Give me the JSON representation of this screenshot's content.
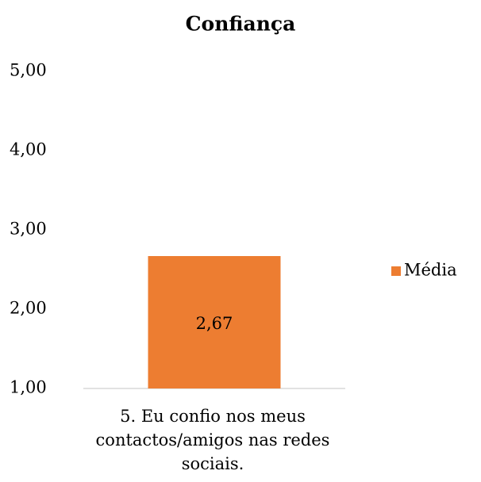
{
  "chart_data": {
    "type": "bar",
    "title": "Confiança",
    "categories": [
      "5. Eu confio nos meus contactos/amigos nas redes sociais."
    ],
    "series": [
      {
        "name": "Média",
        "color": "#ed7d31",
        "values": [
          2.67
        ],
        "value_labels": [
          "2,67"
        ]
      }
    ],
    "ylim": [
      1,
      5
    ],
    "yticks": [
      {
        "value": 1,
        "label": "1,00"
      },
      {
        "value": 2,
        "label": "2,00"
      },
      {
        "value": 3,
        "label": "3,00"
      },
      {
        "value": 4,
        "label": "4,00"
      },
      {
        "value": 5,
        "label": "5,00"
      }
    ],
    "grid": false,
    "legend": "right"
  }
}
